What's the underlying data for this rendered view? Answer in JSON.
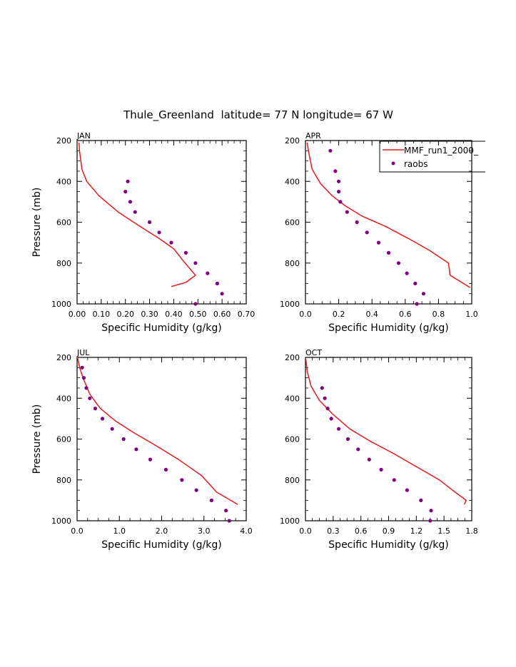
{
  "figure": {
    "title": "Thule_Greenland  latitude= 77 N longitude= 67 W"
  },
  "legend": {
    "entries": [
      {
        "label": "MMF_run1_2000_",
        "kind": "line",
        "color": "#e41a1c"
      },
      {
        "label": "raobs",
        "kind": "marker",
        "color": "#800080"
      }
    ],
    "placement": "top-right of APR panel"
  },
  "colors": {
    "model": "#e41a1c",
    "obs": "#800080",
    "axis": "#000000"
  },
  "chart_data": [
    {
      "type": "line",
      "panel": "JAN",
      "title": "JAN",
      "xlabel": "Specific Humidity (g/kg)",
      "ylabel": "Pressure (mb)",
      "xlim": [
        0,
        0.7
      ],
      "ylim": [
        1000,
        200
      ],
      "y_inverted": true,
      "xticks": [
        "0.00",
        "0.10",
        "0.20",
        "0.30",
        "0.40",
        "0.50",
        "0.60",
        "0.70"
      ],
      "yticks": [
        "200",
        "400",
        "600",
        "800",
        "1000"
      ],
      "series": [
        {
          "name": "MMF_run1_2000_",
          "kind": "line",
          "x": [
            0.008,
            0.01,
            0.02,
            0.04,
            0.09,
            0.17,
            0.26,
            0.34,
            0.4,
            0.44,
            0.49,
            0.45,
            0.39
          ],
          "y": [
            210,
            250,
            340,
            400,
            470,
            550,
            620,
            680,
            730,
            790,
            860,
            895,
            915
          ]
        },
        {
          "name": "raobs",
          "kind": "scatter",
          "x": [
            0.21,
            0.2,
            0.22,
            0.24,
            0.3,
            0.34,
            0.39,
            0.45,
            0.49,
            0.54,
            0.58,
            0.6,
            0.49
          ],
          "y": [
            400,
            450,
            500,
            550,
            600,
            650,
            700,
            750,
            800,
            850,
            900,
            950,
            1000
          ]
        }
      ]
    },
    {
      "type": "line",
      "panel": "APR",
      "title": "APR",
      "xlabel": "Specific Humidity (g/kg)",
      "ylabel": "",
      "xlim": [
        0,
        1.0
      ],
      "ylim": [
        1000,
        200
      ],
      "y_inverted": true,
      "xticks": [
        "0.0",
        "0.2",
        "0.4",
        "0.6",
        "0.8",
        "1.0"
      ],
      "yticks": [
        "200",
        "400",
        "600",
        "800",
        "1000"
      ],
      "series": [
        {
          "name": "MMF_run1_2000_",
          "kind": "line",
          "x": [
            0.01,
            0.02,
            0.04,
            0.09,
            0.16,
            0.24,
            0.34,
            0.48,
            0.62,
            0.75,
            0.86,
            0.87,
            0.93,
            0.99
          ],
          "y": [
            210,
            260,
            340,
            410,
            470,
            520,
            570,
            620,
            680,
            740,
            800,
            860,
            890,
            920
          ]
        },
        {
          "name": "raobs",
          "kind": "scatter",
          "x": [
            0.15,
            0.18,
            0.2,
            0.2,
            0.21,
            0.25,
            0.31,
            0.37,
            0.44,
            0.5,
            0.56,
            0.61,
            0.66,
            0.71,
            0.67
          ],
          "y": [
            250,
            350,
            400,
            450,
            500,
            550,
            600,
            650,
            700,
            750,
            800,
            850,
            900,
            950,
            1000
          ]
        }
      ]
    },
    {
      "type": "line",
      "panel": "JUL",
      "title": "JUL",
      "xlabel": "Specific Humidity (g/kg)",
      "ylabel": "Pressure (mb)",
      "xlim": [
        0,
        4.0
      ],
      "ylim": [
        1000,
        200
      ],
      "y_inverted": true,
      "xticks": [
        "0.0",
        "1.0",
        "2.0",
        "3.0",
        "4.0"
      ],
      "yticks": [
        "200",
        "400",
        "600",
        "800",
        "1000"
      ],
      "series": [
        {
          "name": "MMF_run1_2000_",
          "kind": "line",
          "x": [
            0.01,
            0.06,
            0.14,
            0.3,
            0.55,
            0.9,
            1.35,
            1.85,
            2.4,
            2.95,
            3.3,
            3.8
          ],
          "y": [
            200,
            250,
            300,
            380,
            450,
            510,
            570,
            630,
            700,
            780,
            860,
            920
          ]
        },
        {
          "name": "raobs",
          "kind": "scatter",
          "x": [
            0.12,
            0.16,
            0.22,
            0.3,
            0.43,
            0.6,
            0.83,
            1.1,
            1.4,
            1.73,
            2.1,
            2.48,
            2.82,
            3.18,
            3.52,
            3.6
          ],
          "y": [
            250,
            300,
            350,
            400,
            450,
            500,
            550,
            600,
            650,
            700,
            750,
            800,
            850,
            900,
            950,
            1000
          ]
        }
      ]
    },
    {
      "type": "line",
      "panel": "OCT",
      "title": "OCT",
      "xlabel": "Specific Humidity (g/kg)",
      "ylabel": "",
      "xlim": [
        0,
        1.8
      ],
      "ylim": [
        1000,
        200
      ],
      "y_inverted": true,
      "xticks": [
        "0.0",
        "0.3",
        "0.6",
        "0.9",
        "1.2",
        "1.5",
        "1.8"
      ],
      "yticks": [
        "200",
        "400",
        "600",
        "800",
        "1000"
      ],
      "series": [
        {
          "name": "MMF_run1_2000_",
          "kind": "line",
          "x": [
            0.005,
            0.02,
            0.06,
            0.15,
            0.3,
            0.48,
            0.7,
            0.95,
            1.22,
            1.45,
            1.62,
            1.74,
            1.72
          ],
          "y": [
            210,
            270,
            340,
            410,
            480,
            550,
            610,
            670,
            740,
            800,
            860,
            900,
            920
          ]
        },
        {
          "name": "raobs",
          "kind": "scatter",
          "x": [
            0.18,
            0.21,
            0.24,
            0.28,
            0.36,
            0.46,
            0.57,
            0.69,
            0.82,
            0.96,
            1.1,
            1.25,
            1.36,
            1.35
          ],
          "y": [
            350,
            400,
            450,
            500,
            550,
            600,
            650,
            700,
            750,
            800,
            850,
            900,
            950,
            1000
          ]
        }
      ]
    }
  ]
}
